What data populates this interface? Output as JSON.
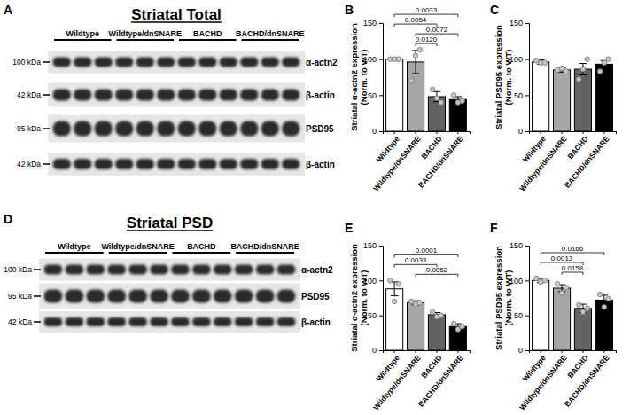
{
  "chart_data": [
    {
      "type": "bar",
      "panel_label": "B",
      "ylabel": "Striatal α-actn2 expression\n(Norm. to WT)",
      "categories": [
        "Wildtype",
        "Wildtype/dnSNARE",
        "BACHD",
        "BACHD/dnSNARE"
      ],
      "values": [
        100,
        96,
        48,
        44
      ],
      "errors": [
        2,
        16,
        7,
        4
      ],
      "points": [
        [
          100,
          100,
          100
        ],
        [
          70,
          105,
          113
        ],
        [
          58,
          46,
          40
        ],
        [
          50,
          40,
          42
        ]
      ],
      "colors": [
        "#ffffff",
        "#a6a6a6",
        "#636363",
        "#000000"
      ],
      "ylim": [
        0,
        150
      ],
      "yticks": [
        0,
        50,
        100,
        150
      ],
      "grid": false,
      "comparisons": [
        {
          "from": 1,
          "to": 2,
          "label": "0.0120"
        },
        {
          "from": 1,
          "to": 3,
          "label": "0.0072"
        },
        {
          "from": 0,
          "to": 2,
          "label": "0.0054"
        },
        {
          "from": 0,
          "to": 3,
          "label": "0.0033"
        }
      ]
    },
    {
      "type": "bar",
      "panel_label": "C",
      "ylabel": "Striatal PSD95 expression\n(Norm. to WT)",
      "categories": [
        "Wildtype",
        "Wildtype/dnSNARE",
        "BACHD",
        "BACHD/dnSNARE"
      ],
      "values": [
        96,
        85,
        86,
        93
      ],
      "errors": [
        3,
        3,
        8,
        5
      ],
      "points": [
        [
          98,
          95,
          95
        ],
        [
          85,
          87,
          83
        ],
        [
          72,
          86,
          100
        ],
        [
          83,
          95,
          100
        ]
      ],
      "colors": [
        "#ffffff",
        "#a6a6a6",
        "#636363",
        "#000000"
      ],
      "ylim": [
        0,
        150
      ],
      "yticks": [
        0,
        50,
        100,
        150
      ],
      "grid": false
    },
    {
      "type": "bar",
      "panel_label": "E",
      "ylabel": "Striatal α-actn2 expression\n(Norm. to WT)",
      "categories": [
        "Wildtype",
        "Wildtype/dnSNARE",
        "BACHD",
        "BACHD/dnSNARE"
      ],
      "values": [
        88,
        68,
        51,
        34
      ],
      "errors": [
        10,
        3,
        3,
        4
      ],
      "points": [
        [
          100,
          70,
          95
        ],
        [
          70,
          66,
          68
        ],
        [
          55,
          48,
          50
        ],
        [
          38,
          30,
          34
        ]
      ],
      "colors": [
        "#ffffff",
        "#a6a6a6",
        "#636363",
        "#000000"
      ],
      "ylim": [
        0,
        150
      ],
      "yticks": [
        0,
        50,
        100,
        150
      ],
      "grid": false,
      "comparisons": [
        {
          "from": 1,
          "to": 3,
          "label": "0.0052"
        },
        {
          "from": 0,
          "to": 2,
          "label": "0.0033"
        },
        {
          "from": 0,
          "to": 3,
          "label": "0.0001"
        }
      ]
    },
    {
      "type": "bar",
      "panel_label": "F",
      "ylabel": "Striatal PSD95 expression\n(Norm. to WT)",
      "categories": [
        "Wildtype",
        "Wildtype/dnSNARE",
        "BACHD",
        "BACHD/dnSNARE"
      ],
      "values": [
        100,
        89,
        60,
        72
      ],
      "errors": [
        3,
        5,
        6,
        7
      ],
      "points": [
        [
          103,
          98,
          100
        ],
        [
          95,
          82,
          90
        ],
        [
          65,
          55,
          60
        ],
        [
          80,
          62,
          74
        ]
      ],
      "colors": [
        "#ffffff",
        "#a6a6a6",
        "#636363",
        "#000000"
      ],
      "ylim": [
        0,
        150
      ],
      "yticks": [
        0,
        50,
        100,
        150
      ],
      "grid": false,
      "comparisons": [
        {
          "from": 1,
          "to": 2,
          "label": "0.0158"
        },
        {
          "from": 0,
          "to": 2,
          "label": "0.0013"
        },
        {
          "from": 0,
          "to": 3,
          "label": "0.0166"
        }
      ]
    }
  ],
  "blots": [
    {
      "panel_label": "A",
      "title": "Striatal Total",
      "groups": [
        "Wildtype",
        "Wildtype/dnSNARE",
        "BACHD",
        "BACHD/dnSNARE"
      ],
      "rows": [
        {
          "marker": "100 kDa",
          "protein": "α-actn2"
        },
        {
          "marker": "42 kDa",
          "protein": "β-actin"
        },
        {
          "marker": "95 kDa",
          "protein": "PSD95"
        },
        {
          "marker": "42 kDa",
          "protein": "β-actin"
        }
      ]
    },
    {
      "panel_label": "D",
      "title": "Striatal PSD",
      "groups": [
        "Wildtype",
        "Wildtype/dnSNARE",
        "BACHD",
        "BACHD/dnSNARE"
      ],
      "rows": [
        {
          "marker": "100 kDa",
          "protein": "α-actn2"
        },
        {
          "marker": "95 kDa",
          "protein": "PSD95"
        },
        {
          "marker": "42 kDa",
          "protein": "β-actin"
        }
      ]
    }
  ]
}
